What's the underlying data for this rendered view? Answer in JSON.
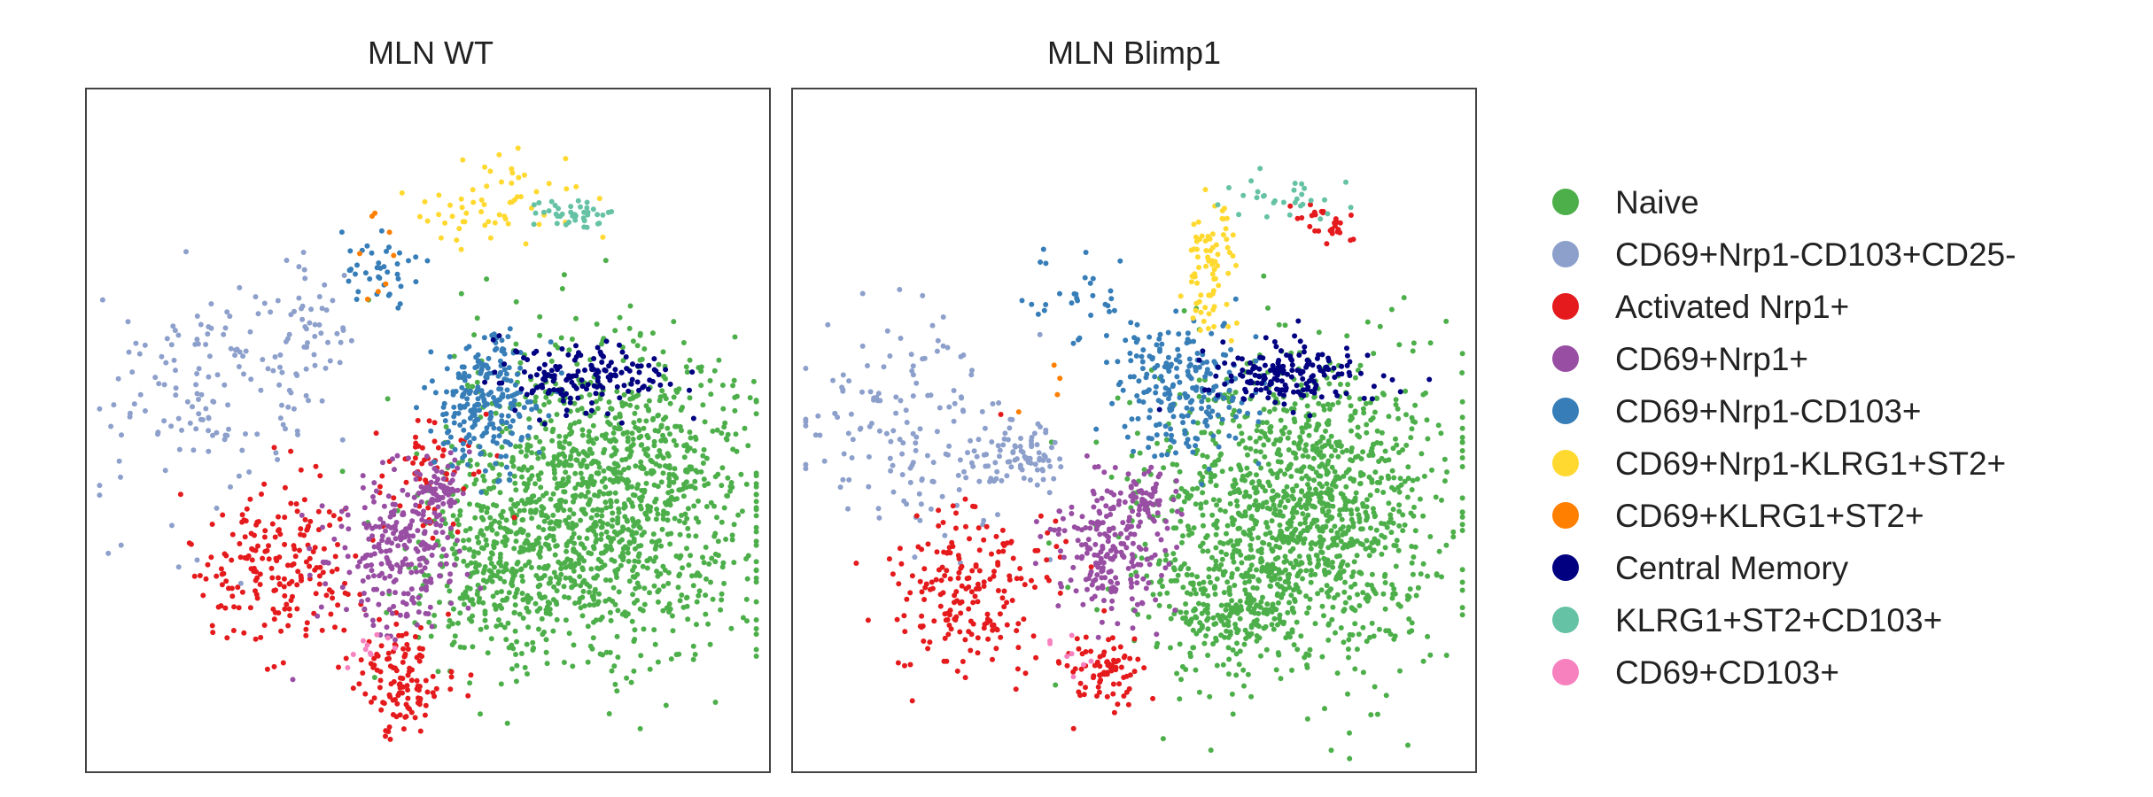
{
  "chart_data": {
    "type": "scatter",
    "grid": false,
    "legend_position": "right",
    "legend": [
      {
        "label": "Naive",
        "color": "#4DAF4A"
      },
      {
        "label": "CD69+Nrp1-CD103+CD25-",
        "color": "#8DA0CB"
      },
      {
        "label": "Activated Nrp1+",
        "color": "#E41A1C"
      },
      {
        "label": "CD69+Nrp1+",
        "color": "#984EA3"
      },
      {
        "label": "CD69+Nrp1-CD103+",
        "color": "#377EB8"
      },
      {
        "label": "CD69+Nrp1-KLRG1+ST2+",
        "color": "#FFD92F"
      },
      {
        "label": "CD69+KLRG1+ST2+",
        "color": "#FF7F00"
      },
      {
        "label": "Central Memory",
        "color": "#000080"
      },
      {
        "label": "KLRG1+ST2+CD103+",
        "color": "#66C2A5"
      },
      {
        "label": "CD69+CD103+",
        "color": "#F781BF"
      }
    ],
    "panels": [
      {
        "title": "MLN WT",
        "xlim": [
          0,
          100
        ],
        "ylim": [
          0,
          100
        ],
        "clusters": [
          {
            "category": "Naive",
            "n": 1300,
            "cx": 76,
            "cy": 40,
            "sx": 11,
            "sy": 11
          },
          {
            "category": "Naive",
            "n": 250,
            "cx": 60,
            "cy": 28,
            "sx": 6,
            "sy": 6
          },
          {
            "category": "CD69+Nrp1-CD103+CD25-",
            "n": 140,
            "cx": 18,
            "cy": 55,
            "sx": 8,
            "sy": 9
          },
          {
            "category": "CD69+Nrp1-CD103+CD25-",
            "n": 50,
            "cx": 32,
            "cy": 66,
            "sx": 4,
            "sy": 6
          },
          {
            "category": "Activated Nrp1+",
            "n": 200,
            "cx": 28,
            "cy": 30,
            "sx": 6,
            "sy": 6
          },
          {
            "category": "Activated Nrp1+",
            "n": 120,
            "cx": 46,
            "cy": 14,
            "sx": 3,
            "sy": 4
          },
          {
            "category": "Activated Nrp1+",
            "n": 60,
            "cx": 50,
            "cy": 44,
            "sx": 4,
            "sy": 5
          },
          {
            "category": "CD69+Nrp1+",
            "n": 250,
            "cx": 46,
            "cy": 32,
            "sx": 5,
            "sy": 6
          },
          {
            "category": "CD69+Nrp1+",
            "n": 60,
            "cx": 52,
            "cy": 41,
            "sx": 2,
            "sy": 2
          },
          {
            "category": "CD69+Nrp1-CD103+",
            "n": 230,
            "cx": 58,
            "cy": 54,
            "sx": 4,
            "sy": 5
          },
          {
            "category": "CD69+Nrp1-CD103+",
            "n": 40,
            "cx": 43,
            "cy": 73,
            "sx": 3,
            "sy": 3
          },
          {
            "category": "CD69+Nrp1-KLRG1+ST2+",
            "n": 60,
            "cx": 60,
            "cy": 84,
            "sx": 6,
            "sy": 3
          },
          {
            "category": "CD69+KLRG1+ST2+",
            "n": 8,
            "cx": 44,
            "cy": 76,
            "sx": 3,
            "sy": 4
          },
          {
            "category": "Central Memory",
            "n": 160,
            "cx": 72,
            "cy": 58,
            "sx": 7,
            "sy": 2
          },
          {
            "category": "KLRG1+ST2+CD103+",
            "n": 40,
            "cx": 71,
            "cy": 82,
            "sx": 3,
            "sy": 1
          },
          {
            "category": "CD69+CD103+",
            "n": 10,
            "cx": 41,
            "cy": 18,
            "sx": 2,
            "sy": 2
          }
        ]
      },
      {
        "title": "MLN Blimp1",
        "xlim": [
          0,
          100
        ],
        "ylim": [
          0,
          100
        ],
        "clusters": [
          {
            "category": "Naive",
            "n": 1300,
            "cx": 74,
            "cy": 38,
            "sx": 11,
            "sy": 11
          },
          {
            "category": "Naive",
            "n": 200,
            "cx": 63,
            "cy": 24,
            "sx": 5,
            "sy": 5
          },
          {
            "category": "CD69+Nrp1-CD103+CD25-",
            "n": 160,
            "cx": 17,
            "cy": 50,
            "sx": 9,
            "sy": 8
          },
          {
            "category": "CD69+Nrp1-CD103+CD25-",
            "n": 70,
            "cx": 33,
            "cy": 46,
            "sx": 3,
            "sy": 2
          },
          {
            "category": "Activated Nrp1+",
            "n": 200,
            "cx": 26,
            "cy": 28,
            "sx": 6,
            "sy": 6
          },
          {
            "category": "Activated Nrp1+",
            "n": 80,
            "cx": 46,
            "cy": 15,
            "sx": 3,
            "sy": 3
          },
          {
            "category": "Activated Nrp1+",
            "n": 30,
            "cx": 78,
            "cy": 80,
            "sx": 2,
            "sy": 2
          },
          {
            "category": "CD69+Nrp1+",
            "n": 200,
            "cx": 46,
            "cy": 32,
            "sx": 4,
            "sy": 5
          },
          {
            "category": "CD69+Nrp1+",
            "n": 60,
            "cx": 52,
            "cy": 40,
            "sx": 2,
            "sy": 2
          },
          {
            "category": "CD69+Nrp1-CD103+",
            "n": 220,
            "cx": 57,
            "cy": 56,
            "sx": 5,
            "sy": 5
          },
          {
            "category": "CD69+Nrp1-CD103+",
            "n": 30,
            "cx": 42,
            "cy": 68,
            "sx": 4,
            "sy": 4
          },
          {
            "category": "CD69+Nrp1-KLRG1+ST2+",
            "n": 80,
            "cx": 61,
            "cy": 74,
            "sx": 2,
            "sy": 5
          },
          {
            "category": "CD69+KLRG1+ST2+",
            "n": 4,
            "cx": 36,
            "cy": 57,
            "sx": 3,
            "sy": 3
          },
          {
            "category": "Central Memory",
            "n": 170,
            "cx": 73,
            "cy": 58,
            "sx": 6,
            "sy": 2
          },
          {
            "category": "KLRG1+ST2+CD103+",
            "n": 30,
            "cx": 72,
            "cy": 84,
            "sx": 4,
            "sy": 2
          },
          {
            "category": "CD69+CD103+",
            "n": 8,
            "cx": 40,
            "cy": 18,
            "sx": 2,
            "sy": 2
          }
        ]
      }
    ]
  }
}
